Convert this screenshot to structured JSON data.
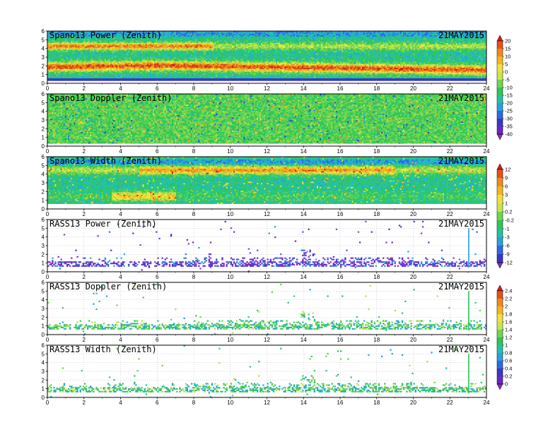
{
  "figure": {
    "date": "21MAY2015"
  },
  "chart_data": [
    {
      "type": "heatmap",
      "title": "Spano13 Power (Zenith)",
      "date": "21MAY2015",
      "xlim": [
        0,
        24
      ],
      "ylim": [
        0,
        6
      ],
      "xticks": [
        0,
        2,
        4,
        6,
        8,
        10,
        12,
        14,
        16,
        18,
        20,
        22,
        24
      ],
      "yticks": [
        0,
        1,
        2,
        3,
        4,
        5,
        6
      ],
      "colorbar": "scale1",
      "grid": true
    },
    {
      "type": "heatmap",
      "title": "Spano13 Doppler (Zenith)",
      "date": "21MAY2015",
      "xlim": [
        0,
        24
      ],
      "ylim": [
        0,
        6
      ],
      "xticks": [
        0,
        2,
        4,
        6,
        8,
        10,
        12,
        14,
        16,
        18,
        20,
        22,
        24
      ],
      "yticks": [
        0,
        1,
        2,
        3,
        4,
        5,
        6
      ],
      "colorbar": "scale1",
      "grid": true
    },
    {
      "type": "heatmap",
      "title": "Spano13 Width (Zenith)",
      "date": "21MAY2015",
      "xlim": [
        0,
        24
      ],
      "ylim": [
        0,
        6
      ],
      "xticks": [
        0,
        2,
        4,
        6,
        8,
        10,
        12,
        14,
        16,
        18,
        20,
        22,
        24
      ],
      "yticks": [
        0,
        1,
        2,
        3,
        4,
        5,
        6
      ],
      "colorbar": "scale2",
      "grid": true
    },
    {
      "type": "heatmap",
      "title": "RASS13 Power (Zenith)",
      "date": "21MAY2015",
      "xlim": [
        0,
        24
      ],
      "ylim": [
        0,
        6
      ],
      "xticks": [
        0,
        2,
        4,
        6,
        8,
        10,
        12,
        14,
        16,
        18,
        20,
        22,
        24
      ],
      "yticks": [
        0,
        1,
        2,
        3,
        4,
        5,
        6
      ],
      "colorbar": "scale2",
      "grid": true
    },
    {
      "type": "heatmap",
      "title": "RASS13 Doppler (Zenith)",
      "date": "21MAY2015",
      "xlim": [
        0,
        24
      ],
      "ylim": [
        0,
        6
      ],
      "xticks": [
        0,
        2,
        4,
        6,
        8,
        10,
        12,
        14,
        16,
        18,
        20,
        22,
        24
      ],
      "yticks": [
        0,
        1,
        2,
        3,
        4,
        5,
        6
      ],
      "colorbar": "scale3",
      "grid": true
    },
    {
      "type": "heatmap",
      "title": "RASS13 Width (Zenith)",
      "date": "21MAY2015",
      "xlim": [
        0,
        24
      ],
      "ylim": [
        0,
        6
      ],
      "xticks": [
        0,
        2,
        4,
        6,
        8,
        10,
        12,
        14,
        16,
        18,
        20,
        22,
        24
      ],
      "yticks": [
        0,
        1,
        2,
        3,
        4,
        5,
        6
      ],
      "colorbar": "scale3",
      "grid": true
    }
  ],
  "colorbars": {
    "scale1": {
      "ticks": [
        "20",
        "15",
        "10",
        "5",
        "0",
        "-5",
        "-10",
        "-15",
        "-20",
        "-25",
        "-30",
        "-35",
        "-40"
      ],
      "colors": [
        "#d7191c",
        "#e8501a",
        "#f08a1c",
        "#f6b51a",
        "#f4e03a",
        "#c8e64a",
        "#6fd64e",
        "#2fc65a",
        "#22c2a8",
        "#2aa0e0",
        "#2a6ae6",
        "#3a36cc",
        "#6a28c8",
        "#8a2cc0"
      ]
    },
    "scale2": {
      "ticks": [
        "12",
        "9",
        "6",
        "3",
        "1",
        "0.2",
        "-0.2",
        "-1",
        "-3",
        "-6",
        "-9",
        "-12"
      ],
      "colors": [
        "#d7191c",
        "#e8501a",
        "#f08a1c",
        "#f6b51a",
        "#f4e03a",
        "#c8e64a",
        "#6fd64e",
        "#2fc65a",
        "#22c2a8",
        "#2aa0e0",
        "#2a6ae6",
        "#3a36cc",
        "#8a2cc0"
      ]
    },
    "scale3": {
      "ticks": [
        "2.4",
        "2.2",
        "2",
        "1.8",
        "1.6",
        "1.4",
        "1.2",
        "1",
        "0.8",
        "0.6",
        "0.4",
        "0.2",
        "0"
      ],
      "colors": [
        "#d7191c",
        "#e8501a",
        "#f08a1c",
        "#f6b51a",
        "#f4e03a",
        "#c8e64a",
        "#6fd64e",
        "#2fc65a",
        "#22c2a8",
        "#2aa0e0",
        "#2a6ae6",
        "#3a36cc",
        "#6a28c8",
        "#8a2cc0"
      ]
    }
  }
}
